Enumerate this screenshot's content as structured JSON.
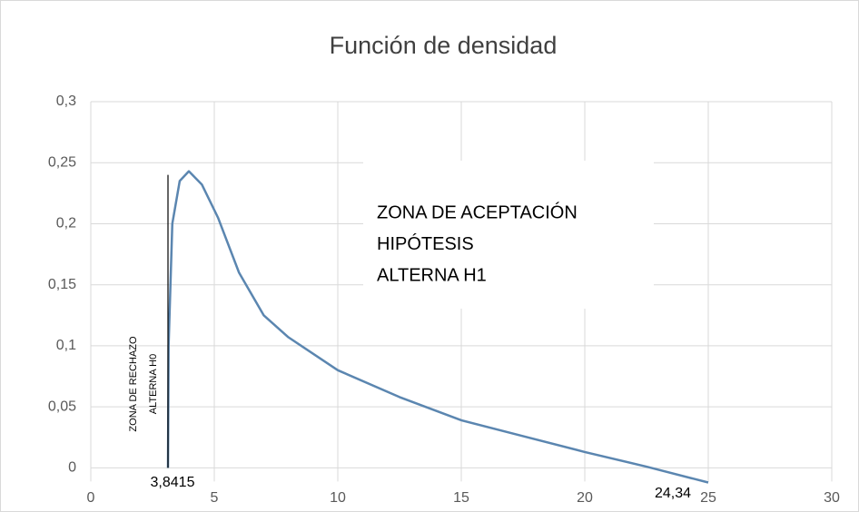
{
  "chart_data": {
    "type": "line",
    "title": "Función de densidad",
    "series": [
      {
        "color": "#5b86b0",
        "x": [
          3.125,
          3.15,
          3.3,
          3.6,
          3.97,
          4.5,
          5.15,
          6,
          7,
          8,
          10,
          12.5,
          15,
          17.5,
          20,
          22.5,
          25
        ],
        "values": [
          0,
          0.1,
          0.2,
          0.235,
          0.243,
          0.232,
          0.205,
          0.16,
          0.125,
          0.107,
          0.08,
          0.058,
          0.039,
          0.026,
          0.013,
          0.001,
          -0.012
        ]
      }
    ],
    "xlim": [
      0,
      30
    ],
    "xticks": [
      0,
      5,
      10,
      15,
      20,
      25,
      30
    ],
    "ylim": [
      -0.025,
      0.3
    ],
    "yticks": [
      0,
      {
        "value": 0.05,
        "label": "0,05"
      },
      {
        "value": 0.1,
        "label": "0,1"
      },
      {
        "value": 0.15,
        "label": "0,15"
      },
      {
        "value": 0.2,
        "label": "0,2"
      },
      {
        "value": 0.25,
        "label": "0,25"
      },
      {
        "value": 0.3,
        "label": "0,3"
      }
    ],
    "grid": true,
    "critical_line": {
      "x": 3.125,
      "y": [
        0,
        0.24
      ]
    },
    "annotations": {
      "acceptance": [
        "ZONA DE ACEPTACIÓN",
        "HIPÓTESIS",
        "ALTERNA H1"
      ],
      "rejection": [
        "ZONA DE RECHAZO",
        "ALTERNA H0"
      ],
      "critical_labels": [
        "3,8415",
        "24,34"
      ]
    }
  }
}
